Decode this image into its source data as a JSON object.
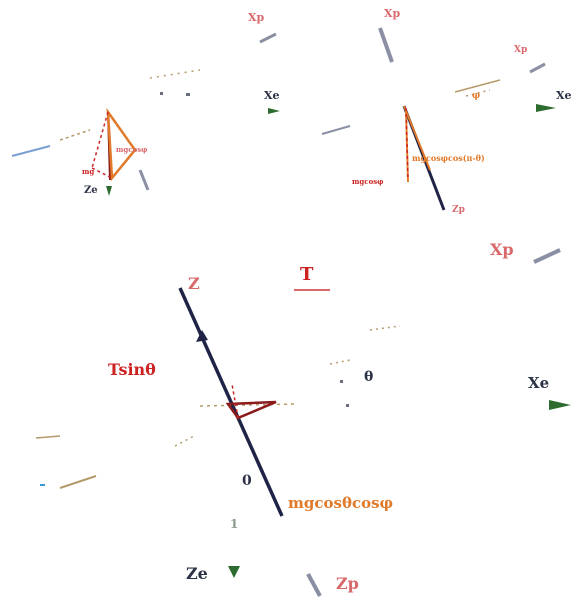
{
  "labels": {
    "xp_top_mid": "Xp",
    "xp_top_right": "Xp",
    "xp_small_top_right": "Xp",
    "xe_top": "Xe",
    "xe_top_right": "Xe",
    "ze_top_left": "Ze",
    "mg_top_left": "mg",
    "mgcos_top_left": "mgcosφ",
    "mgcos_top_right": "mgcosφ",
    "mgcos_right_orange": "mgcosφcos(π-θ)",
    "phi_top_right": "φ",
    "zp_top_right": "Zp",
    "xp_mid_right": "Xp",
    "t_main": "T",
    "z_main": "Z",
    "tsin_main": "Tsinθ",
    "theta_main": "θ",
    "xe_main": "Xe",
    "zero_main": "0",
    "mgcos_main": "mgcosθcosφ",
    "one_main": "1",
    "ze_main": "Ze",
    "zp_main": "Zp"
  },
  "colors": {
    "rod": "#1f2446",
    "red": "#cc2222",
    "orange": "#e07a2a",
    "green": "#2e6b2e",
    "pink": "#d9686b",
    "axis_grey": "#8a8fa3"
  }
}
